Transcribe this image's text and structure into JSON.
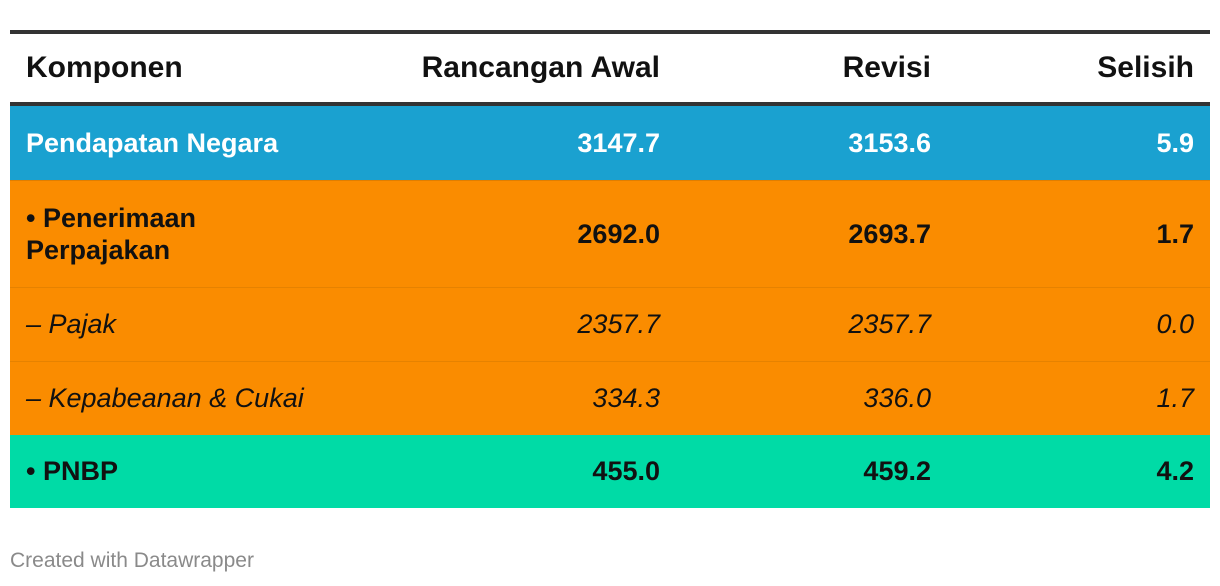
{
  "chart_data": {
    "type": "table",
    "columns": [
      "Komponen",
      "Rancangan Awal",
      "Revisi",
      "Selisih"
    ],
    "rows": [
      {
        "label": "Pendapatan Negara",
        "values": [
          "3147.7",
          "3153.6",
          "5.9"
        ],
        "color": "#1aa1d0",
        "style": "bold"
      },
      {
        "label": "• Penerimaan Perpajakan",
        "values": [
          "2692.0",
          "2693.7",
          "1.7"
        ],
        "color": "#fa8c00",
        "style": "bold"
      },
      {
        "label": "– Pajak",
        "values": [
          "2357.7",
          "2357.7",
          "0.0"
        ],
        "color": "#fa8c00",
        "style": "italic"
      },
      {
        "label": "– Kepabeanan & Cukai",
        "values": [
          "334.3",
          "336.0",
          "1.7"
        ],
        "color": "#fa8c00",
        "style": "italic"
      },
      {
        "label": "• PNBP",
        "values": [
          "455.0",
          "459.2",
          "4.2"
        ],
        "color": "#00dba6",
        "style": "bold"
      }
    ]
  },
  "footer": "Created with Datawrapper"
}
